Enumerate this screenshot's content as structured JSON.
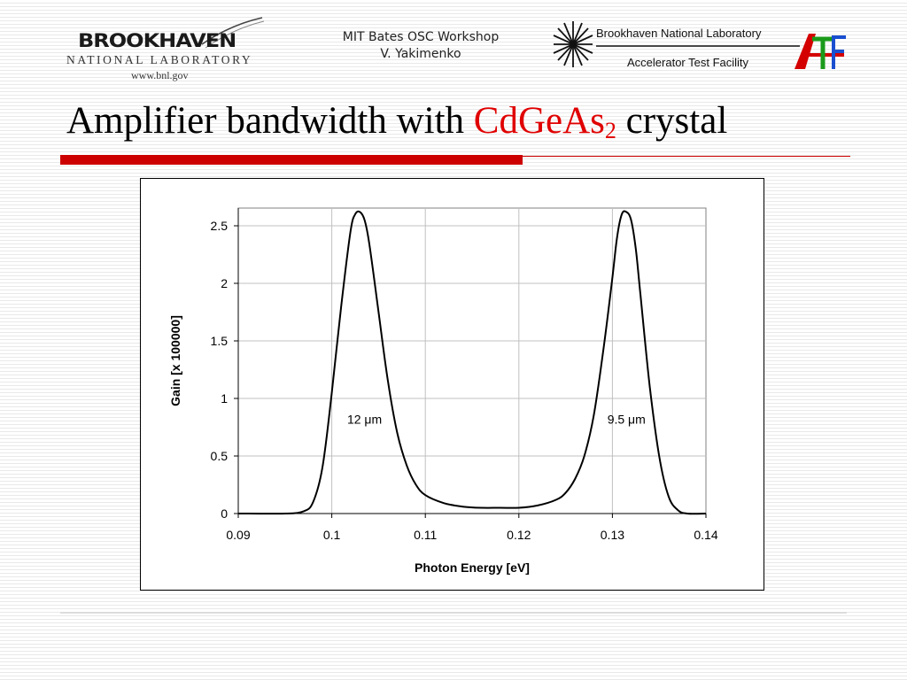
{
  "header": {
    "bnl_name": "BROOKHAVEN",
    "bnl_lab": "NATIONAL LABORATORY",
    "bnl_url": "www.bnl.gov",
    "workshop_line1": "MIT Bates OSC Workshop",
    "workshop_line2": "V. Yakimenko",
    "atf_line1": "Brookhaven National Laboratory",
    "atf_line2": "Accelerator Test Facility"
  },
  "slide": {
    "title_pre": "Amplifier bandwidth with ",
    "title_chem": "CdGeAs",
    "title_sub": "2",
    "title_post": " crystal"
  },
  "colors": {
    "accent_red": "#cc0000",
    "title_highlight": "#e00000"
  },
  "chart_data": {
    "type": "line",
    "xlabel": "Photon Energy [eV]",
    "ylabel": "Gain [x 100000]",
    "xlim": [
      0.09,
      0.14
    ],
    "ylim": [
      0,
      2.5
    ],
    "xticks": [
      0.09,
      0.1,
      0.11,
      0.12,
      0.13,
      0.14
    ],
    "xtick_labels": [
      "0.09",
      "0.1",
      "0.11",
      "0.12",
      "0.13",
      "0.14"
    ],
    "yticks": [
      0,
      0.5,
      1,
      1.5,
      2,
      2.5
    ],
    "ytick_labels": [
      "0",
      "0.5",
      "1",
      "1.5",
      "2",
      "2.5"
    ],
    "grid": true,
    "legend": "none",
    "series": [
      {
        "x": [
          0.09,
          0.095,
          0.097,
          0.098,
          0.099,
          0.1,
          0.101,
          0.102,
          0.1025,
          0.103,
          0.1035,
          0.104,
          0.105,
          0.106,
          0.107,
          0.108,
          0.109,
          0.11,
          0.112,
          0.114,
          0.116,
          0.118,
          0.12,
          0.122,
          0.124,
          0.125,
          0.126,
          0.127,
          0.128,
          0.129,
          0.13,
          0.1305,
          0.131,
          0.1315,
          0.132,
          0.1325,
          0.133,
          0.134,
          0.135,
          0.136,
          0.137,
          0.138,
          0.14
        ],
        "y": [
          0,
          0,
          0.02,
          0.1,
          0.4,
          1.05,
          1.8,
          2.45,
          2.6,
          2.62,
          2.55,
          2.35,
          1.75,
          1.15,
          0.7,
          0.42,
          0.25,
          0.16,
          0.09,
          0.06,
          0.05,
          0.05,
          0.05,
          0.07,
          0.12,
          0.18,
          0.3,
          0.5,
          0.85,
          1.4,
          2.05,
          2.4,
          2.6,
          2.62,
          2.55,
          2.3,
          1.9,
          1.1,
          0.5,
          0.15,
          0.03,
          0,
          0
        ]
      }
    ],
    "annotations": [
      {
        "x": 0.1035,
        "y": 0.78,
        "text": "12 μm"
      },
      {
        "x": 0.1315,
        "y": 0.78,
        "text": "9.5 μm"
      }
    ]
  }
}
